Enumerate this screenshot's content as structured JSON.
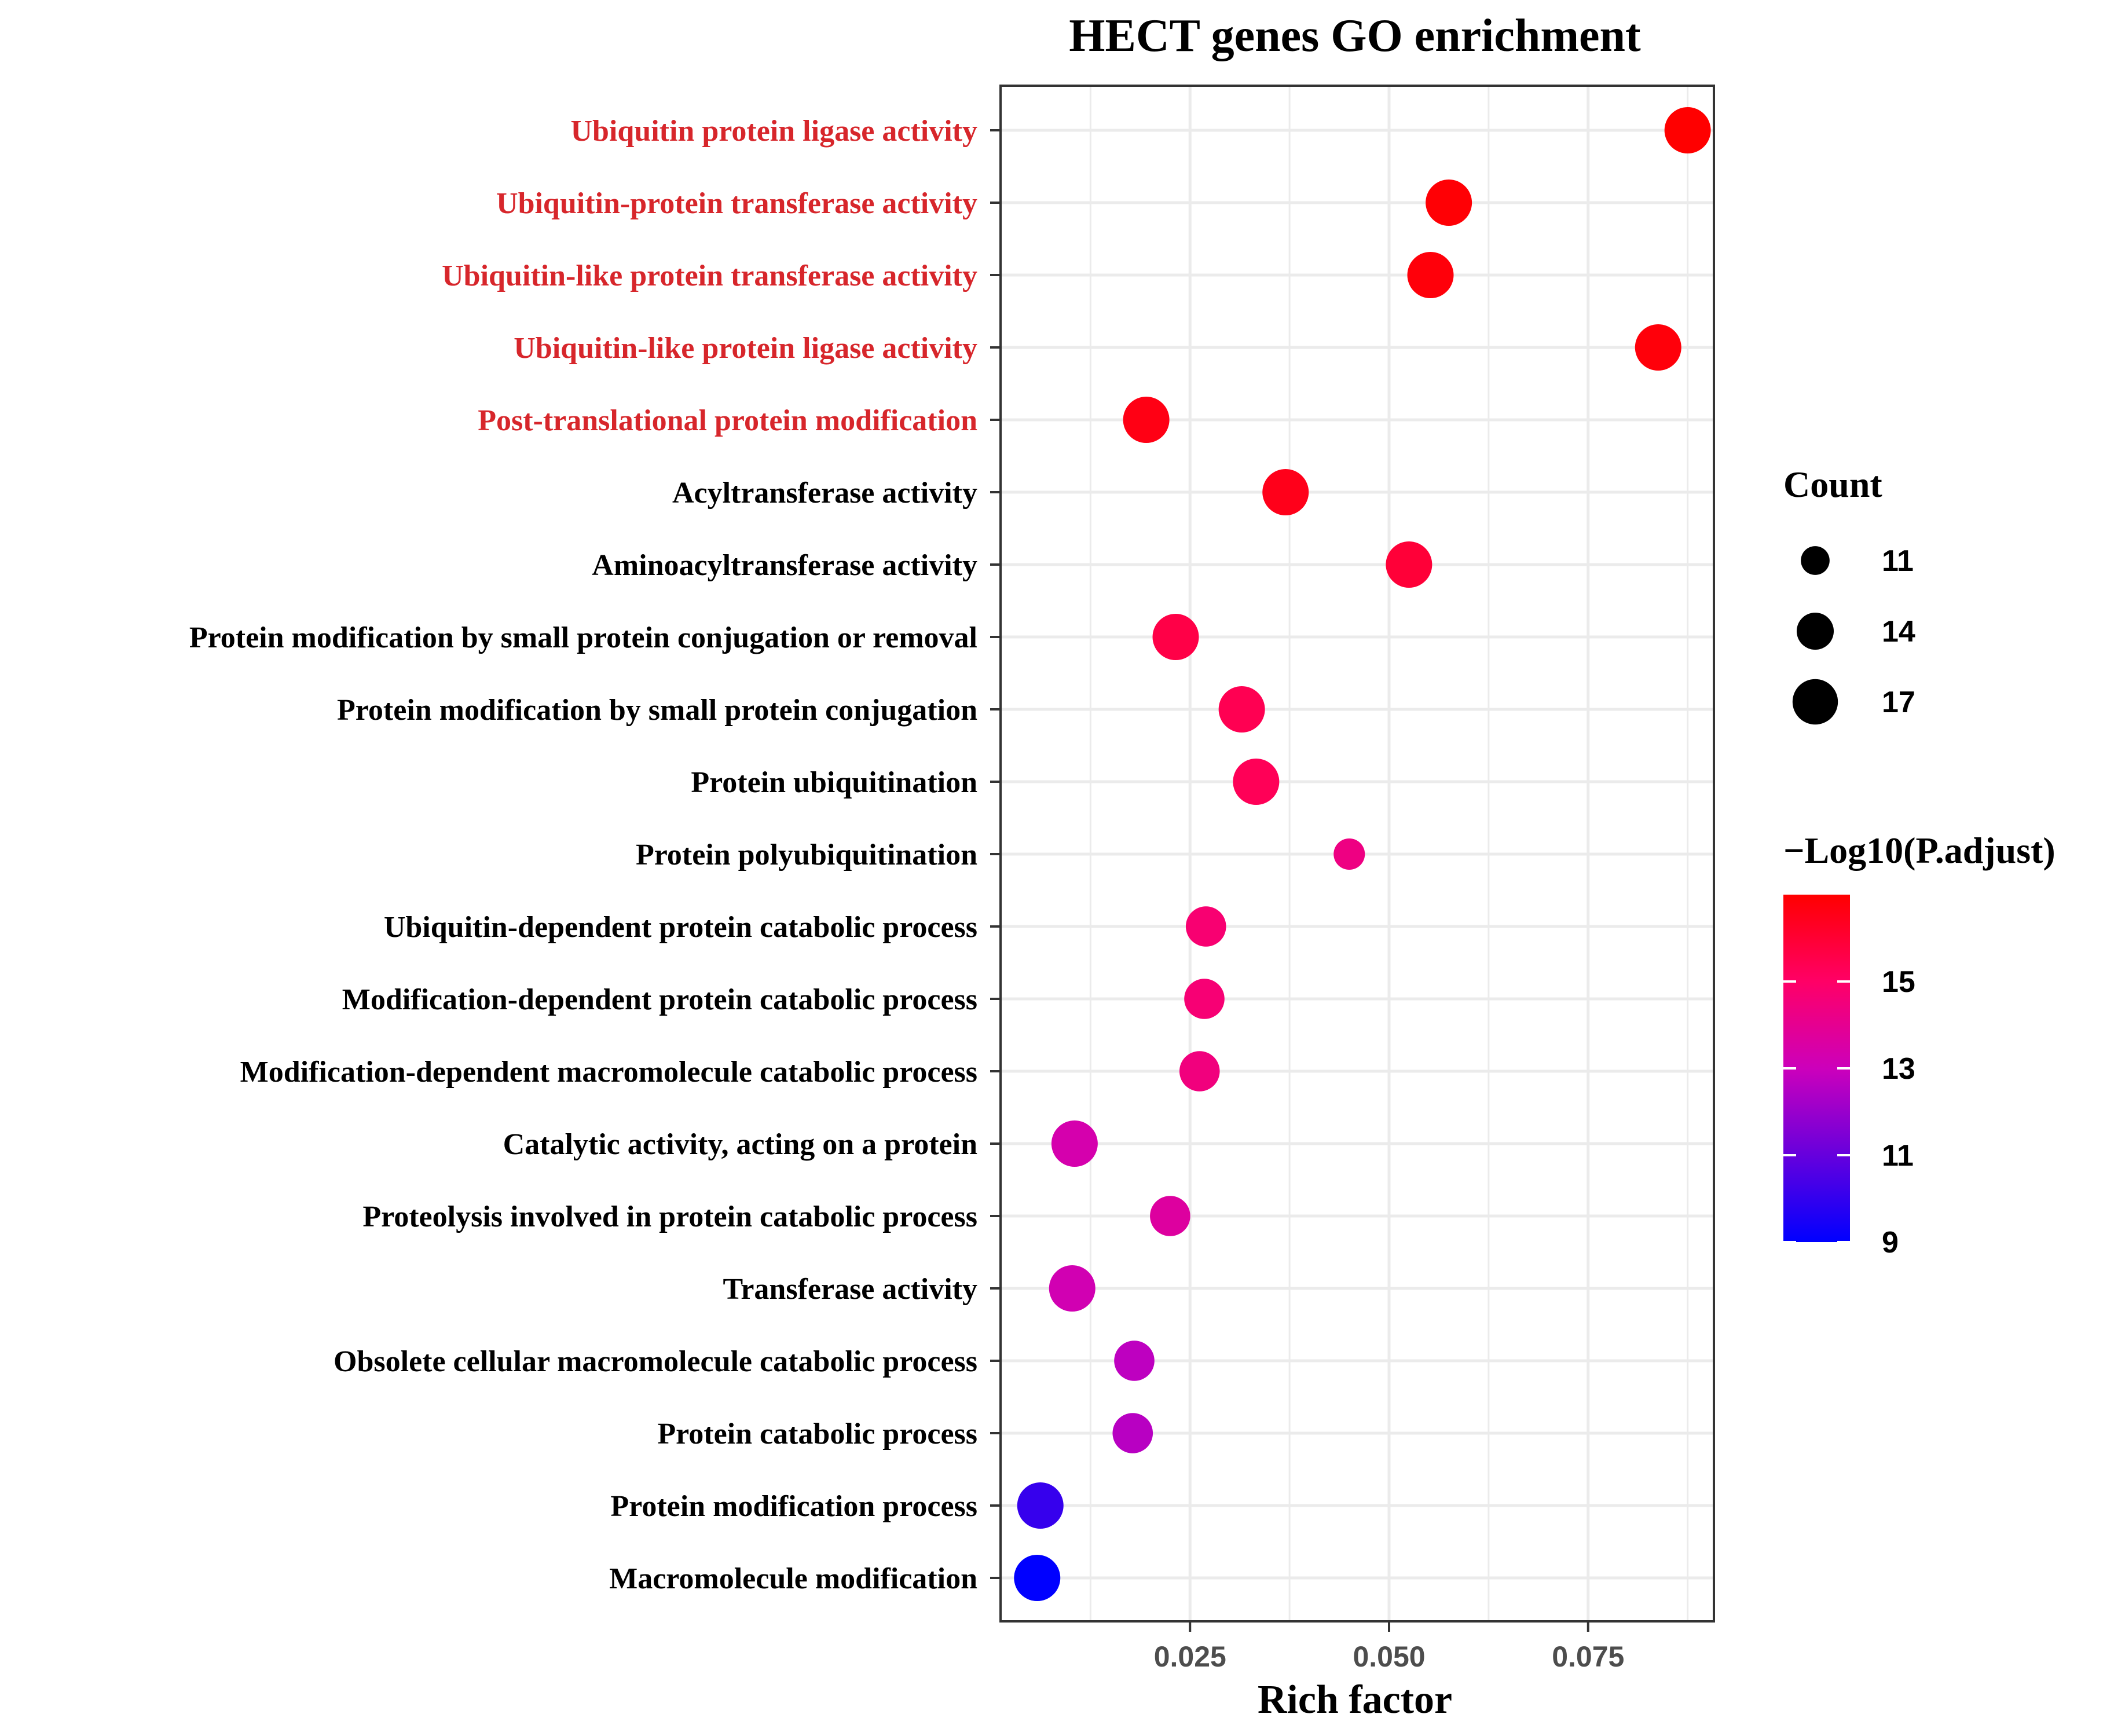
{
  "chart_data": {
    "type": "scatter",
    "title": "HECT genes GO enrichment",
    "xlabel": "Rich factor",
    "ylabel": "",
    "xlim": [
      0.0012,
      0.0908
    ],
    "xticks": [
      0.025,
      0.05,
      0.075
    ],
    "xtick_labels": [
      "0.025",
      "0.050",
      "0.075"
    ],
    "grid": true,
    "highlight_color": "#d7262b",
    "text_color": "#000000",
    "points": [
      {
        "term": "Ubiquitin protein ligase activity",
        "rich_factor": 0.0875,
        "count": 16,
        "neg_log10_padj": 17.0,
        "highlight": true
      },
      {
        "term": "Ubiquitin-protein transferase activity",
        "rich_factor": 0.0575,
        "count": 16,
        "neg_log10_padj": 16.9,
        "highlight": true
      },
      {
        "term": "Ubiquitin-like protein transferase activity",
        "rich_factor": 0.0552,
        "count": 16,
        "neg_log10_padj": 16.8,
        "highlight": true
      },
      {
        "term": "Ubiquitin-like protein ligase activity",
        "rich_factor": 0.0838,
        "count": 16,
        "neg_log10_padj": 16.8,
        "highlight": true
      },
      {
        "term": "Post-translational protein modification",
        "rich_factor": 0.0195,
        "count": 16,
        "neg_log10_padj": 16.6,
        "highlight": true
      },
      {
        "term": "Acyltransferase activity",
        "rich_factor": 0.037,
        "count": 16,
        "neg_log10_padj": 16.5,
        "highlight": false
      },
      {
        "term": "Aminoacyltransferase activity",
        "rich_factor": 0.0525,
        "count": 16,
        "neg_log10_padj": 15.9,
        "highlight": false
      },
      {
        "term": "Protein modification by small protein conjugation or removal",
        "rich_factor": 0.0232,
        "count": 16,
        "neg_log10_padj": 15.6,
        "highlight": false
      },
      {
        "term": "Protein modification by small protein conjugation",
        "rich_factor": 0.0315,
        "count": 16,
        "neg_log10_padj": 15.4,
        "highlight": false
      },
      {
        "term": "Protein ubiquitination",
        "rich_factor": 0.0333,
        "count": 16,
        "neg_log10_padj": 15.3,
        "highlight": false
      },
      {
        "term": "Protein polyubiquitination",
        "rich_factor": 0.045,
        "count": 11,
        "neg_log10_padj": 14.0,
        "highlight": false
      },
      {
        "term": "Ubiquitin-dependent protein catabolic process",
        "rich_factor": 0.027,
        "count": 14,
        "neg_log10_padj": 14.6,
        "highlight": false
      },
      {
        "term": "Modification-dependent protein catabolic process",
        "rich_factor": 0.0268,
        "count": 14,
        "neg_log10_padj": 14.5,
        "highlight": false
      },
      {
        "term": "Modification-dependent macromolecule catabolic process",
        "rich_factor": 0.0262,
        "count": 14,
        "neg_log10_padj": 14.2,
        "highlight": false
      },
      {
        "term": "Catalytic activity, acting on a protein",
        "rich_factor": 0.0105,
        "count": 16,
        "neg_log10_padj": 12.5,
        "highlight": false
      },
      {
        "term": "Proteolysis involved in protein catabolic process",
        "rich_factor": 0.0225,
        "count": 14,
        "neg_log10_padj": 13.0,
        "highlight": false
      },
      {
        "term": "Transferase activity",
        "rich_factor": 0.0102,
        "count": 16,
        "neg_log10_padj": 12.3,
        "highlight": false
      },
      {
        "term": "Obsolete cellular macromolecule catabolic process",
        "rich_factor": 0.018,
        "count": 14,
        "neg_log10_padj": 11.8,
        "highlight": false
      },
      {
        "term": "Protein catabolic process",
        "rich_factor": 0.0178,
        "count": 14,
        "neg_log10_padj": 11.7,
        "highlight": false
      },
      {
        "term": "Protein modification process",
        "rich_factor": 0.0062,
        "count": 16,
        "neg_log10_padj": 9.8,
        "highlight": false
      },
      {
        "term": "Macromolecule modification",
        "rich_factor": 0.0058,
        "count": 16,
        "neg_log10_padj": 9.0,
        "highlight": false
      }
    ],
    "size_legend": {
      "title": "Count",
      "values": [
        11,
        14,
        17
      ],
      "labels": [
        "11",
        "14",
        "17"
      ]
    },
    "color_legend": {
      "title": "−Log10(P.adjust)",
      "range": [
        9,
        17
      ],
      "ticks": [
        9,
        11,
        13,
        15
      ],
      "tick_labels": [
        "9",
        "11",
        "13",
        "15"
      ],
      "low_color": "#0000ff",
      "high_color": "#ff0000"
    }
  }
}
